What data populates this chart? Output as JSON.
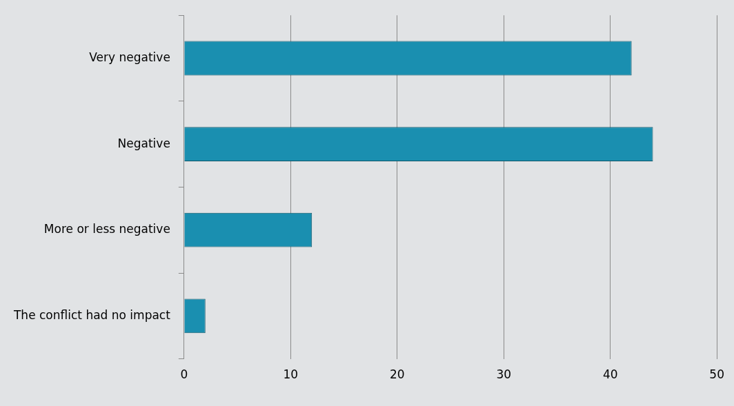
{
  "chart_data": {
    "type": "bar",
    "orientation": "horizontal",
    "categories": [
      "Very negative",
      "Negative",
      "More or less negative",
      "The conflict had no impact"
    ],
    "values": [
      42,
      44,
      12,
      2
    ],
    "color": "#1a8fb0",
    "xlim": [
      0,
      50
    ],
    "xticks": [
      0,
      10,
      20,
      30,
      40,
      50
    ],
    "grid": "x",
    "legend": false
  }
}
